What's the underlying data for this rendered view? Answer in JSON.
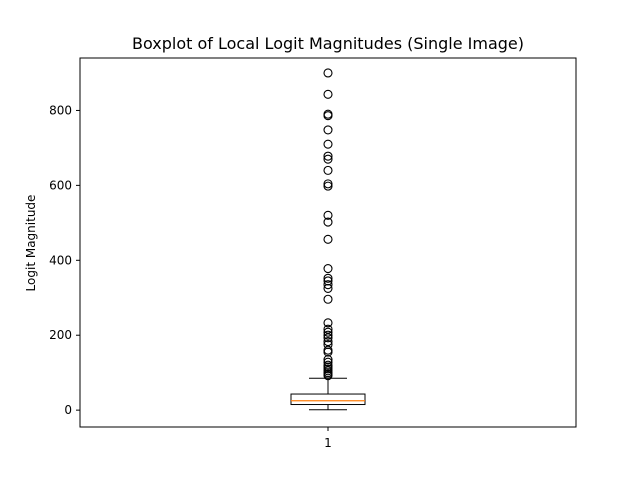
{
  "chart_data": {
    "type": "boxplot",
    "title": "Boxplot of Local Logit Magnitudes (Single Image)",
    "xlabel": "",
    "ylabel": "Logit Magnitude",
    "categories": [
      "1"
    ],
    "ylim": [
      -45,
      940
    ],
    "yticks": [
      0,
      200,
      400,
      600,
      800
    ],
    "ytick_labels": [
      "0",
      "200",
      "400",
      "600",
      "800"
    ],
    "grid": false,
    "box": {
      "whisker_low": 1,
      "q1": 15,
      "median": 25,
      "q3": 43,
      "whisker_high": 85
    },
    "outliers": [
      900,
      843,
      790,
      786,
      748,
      710,
      678,
      670,
      640,
      604,
      598,
      520,
      502,
      456,
      378,
      352,
      345,
      335,
      325,
      296,
      233,
      216,
      208,
      200,
      193,
      183,
      175,
      160,
      155,
      135,
      128,
      120,
      115,
      110,
      105,
      100,
      96,
      92
    ],
    "colors": {
      "box": "#000000",
      "median": "#ff7f0e",
      "outlier": "#000000"
    }
  }
}
